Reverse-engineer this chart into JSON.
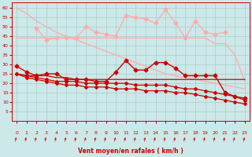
{
  "bg_color": "#cce8e8",
  "grid_color": "#aacccc",
  "x": [
    0,
    1,
    2,
    3,
    4,
    5,
    6,
    7,
    8,
    9,
    10,
    11,
    12,
    13,
    14,
    15,
    16,
    17,
    18,
    19,
    20,
    21,
    22,
    23
  ],
  "light_pink_diagonal": [
    60,
    57,
    53,
    50,
    47,
    45,
    43,
    41,
    39,
    37,
    35,
    33,
    31,
    29,
    27,
    25,
    24,
    23,
    22,
    21,
    20,
    19,
    18,
    17
  ],
  "light_pink_flat": [
    44,
    44,
    44,
    44,
    44,
    44,
    44,
    44,
    44,
    44,
    44,
    44,
    44,
    44,
    44,
    44,
    44,
    44,
    44,
    44,
    41,
    41,
    35,
    21
  ],
  "light_pink_wavy_x": [
    2,
    3,
    4,
    5,
    6,
    7,
    8,
    9,
    10,
    11,
    12,
    13,
    14,
    15,
    16,
    17,
    18,
    19,
    20,
    21
  ],
  "light_pink_wavy_y": [
    49,
    43,
    44,
    44,
    44,
    50,
    47,
    46,
    45,
    56,
    55,
    54,
    52,
    59,
    52,
    44,
    53,
    47,
    46,
    47
  ],
  "dark_red_wavy": [
    29,
    26,
    24,
    25,
    25,
    22,
    22,
    22,
    21,
    21,
    26,
    32,
    27,
    27,
    31,
    31,
    28,
    24,
    24,
    24,
    24,
    15,
    13,
    12
  ],
  "dark_red_flat1": [
    25,
    24,
    24,
    24,
    23,
    23,
    22,
    22,
    22,
    22,
    22,
    22,
    22,
    22,
    22,
    22,
    22,
    22,
    22,
    22,
    22,
    22,
    22,
    22
  ],
  "dark_red_slope1": [
    25,
    24,
    23,
    22,
    21,
    21,
    21,
    20,
    20,
    20,
    20,
    20,
    19,
    19,
    19,
    19,
    18,
    17,
    17,
    16,
    15,
    14,
    13,
    11
  ],
  "dark_red_slope2": [
    25,
    23,
    22,
    21,
    20,
    19,
    19,
    18,
    18,
    18,
    17,
    17,
    17,
    16,
    16,
    16,
    15,
    15,
    14,
    13,
    12,
    11,
    10,
    9
  ],
  "light_pink_color": "#ffaaaa",
  "dark_red_color": "#cc0000",
  "medium_red_color": "#dd3333",
  "xlabel": "Vent moyen/en rafales ( km/h )",
  "ylim": [
    0,
    63
  ],
  "xlim": [
    -0.5,
    23.5
  ],
  "yticks": [
    5,
    10,
    15,
    20,
    25,
    30,
    35,
    40,
    45,
    50,
    55,
    60
  ],
  "xticks": [
    0,
    1,
    2,
    3,
    4,
    5,
    6,
    7,
    8,
    9,
    10,
    11,
    12,
    13,
    14,
    15,
    16,
    17,
    18,
    19,
    20,
    21,
    22,
    23
  ]
}
